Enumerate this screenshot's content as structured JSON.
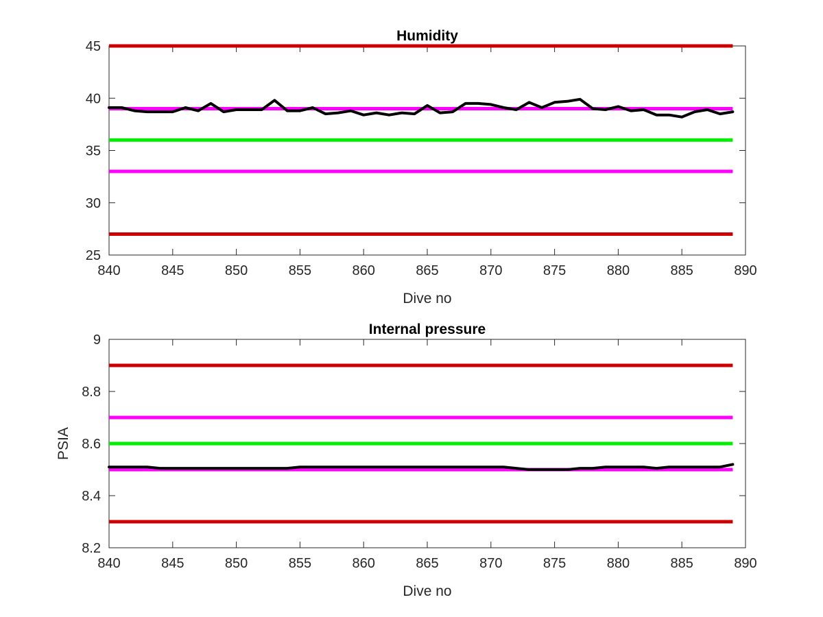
{
  "chart_data": [
    {
      "type": "line",
      "title": "Humidity",
      "xlabel": "Dive no",
      "ylabel": "",
      "xlim": [
        840,
        890
      ],
      "ylim": [
        25,
        45
      ],
      "xticks": [
        840,
        845,
        850,
        855,
        860,
        865,
        870,
        875,
        880,
        885,
        890
      ],
      "yticks": [
        25,
        30,
        35,
        40,
        45
      ],
      "grid": false,
      "legend": "none",
      "thresholds": [
        {
          "value": 45,
          "color": "#cc0000"
        },
        {
          "value": 39,
          "color": "#ff00ff"
        },
        {
          "value": 36,
          "color": "#00ee00"
        },
        {
          "value": 33,
          "color": "#ff00ff"
        },
        {
          "value": 27,
          "color": "#cc0000"
        }
      ],
      "series": [
        {
          "color": "#000000",
          "x": [
            840,
            841,
            842,
            843,
            844,
            845,
            846,
            847,
            848,
            849,
            850,
            851,
            852,
            853,
            854,
            855,
            856,
            857,
            858,
            859,
            860,
            861,
            862,
            863,
            864,
            865,
            866,
            867,
            868,
            869,
            870,
            871,
            872,
            873,
            874,
            875,
            876,
            877,
            878,
            879,
            880,
            881,
            882,
            883,
            884,
            885,
            886,
            887,
            888,
            889
          ],
          "y": [
            39.1,
            39.1,
            38.8,
            38.7,
            38.7,
            38.7,
            39.1,
            38.8,
            39.5,
            38.7,
            38.9,
            38.9,
            38.9,
            39.8,
            38.8,
            38.8,
            39.1,
            38.5,
            38.6,
            38.8,
            38.4,
            38.6,
            38.4,
            38.6,
            38.5,
            39.3,
            38.6,
            38.7,
            39.5,
            39.5,
            39.4,
            39.1,
            38.9,
            39.6,
            39.1,
            39.6,
            39.7,
            39.9,
            39.0,
            38.9,
            39.2,
            38.8,
            38.9,
            38.4,
            38.4,
            38.2,
            38.7,
            38.9,
            38.5,
            38.7
          ]
        }
      ]
    },
    {
      "type": "line",
      "title": "Internal pressure",
      "xlabel": "Dive no",
      "ylabel": "PSIA",
      "xlim": [
        840,
        890
      ],
      "ylim": [
        8.2,
        9.0
      ],
      "xticks": [
        840,
        845,
        850,
        855,
        860,
        865,
        870,
        875,
        880,
        885,
        890
      ],
      "yticks": [
        8.2,
        8.4,
        8.6,
        8.8,
        9
      ],
      "grid": false,
      "legend": "none",
      "thresholds": [
        {
          "value": 8.9,
          "color": "#cc0000"
        },
        {
          "value": 8.7,
          "color": "#ff00ff"
        },
        {
          "value": 8.6,
          "color": "#00ee00"
        },
        {
          "value": 8.5,
          "color": "#ff00ff"
        },
        {
          "value": 8.3,
          "color": "#cc0000"
        }
      ],
      "series": [
        {
          "color": "#000000",
          "x": [
            840,
            841,
            842,
            843,
            844,
            845,
            846,
            847,
            848,
            849,
            850,
            851,
            852,
            853,
            854,
            855,
            856,
            857,
            858,
            859,
            860,
            861,
            862,
            863,
            864,
            865,
            866,
            867,
            868,
            869,
            870,
            871,
            872,
            873,
            874,
            875,
            876,
            877,
            878,
            879,
            880,
            881,
            882,
            883,
            884,
            885,
            886,
            887,
            888,
            889
          ],
          "y": [
            8.51,
            8.51,
            8.51,
            8.51,
            8.505,
            8.505,
            8.505,
            8.505,
            8.505,
            8.505,
            8.505,
            8.505,
            8.505,
            8.505,
            8.505,
            8.51,
            8.51,
            8.51,
            8.51,
            8.51,
            8.51,
            8.51,
            8.51,
            8.51,
            8.51,
            8.51,
            8.51,
            8.51,
            8.51,
            8.51,
            8.51,
            8.51,
            8.505,
            8.5,
            8.5,
            8.5,
            8.5,
            8.505,
            8.505,
            8.51,
            8.51,
            8.51,
            8.51,
            8.505,
            8.51,
            8.51,
            8.51,
            8.51,
            8.51,
            8.52
          ]
        }
      ]
    }
  ]
}
